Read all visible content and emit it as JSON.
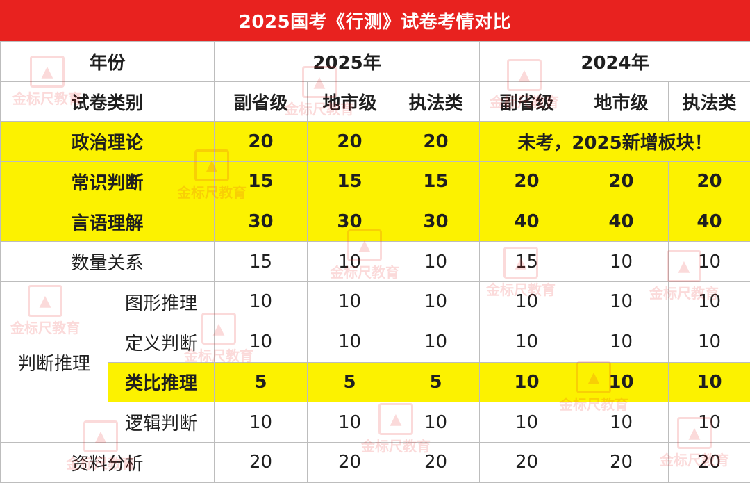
{
  "title": "2025国考《行测》试卷考情对比",
  "header": {
    "year_label": "年份",
    "year_2025": "2025年",
    "year_2024": "2024年",
    "category_label": "试卷类别",
    "levels_2025": [
      "副省级",
      "地市级",
      "执法类"
    ],
    "levels_2024": [
      "副省级",
      "地市级",
      "执法类"
    ]
  },
  "rows": {
    "politics": {
      "label": "政治理论",
      "v2025": [
        "20",
        "20",
        "20"
      ],
      "note_2024": "未考，2025新增板块！"
    },
    "common": {
      "label": "常识判断",
      "v2025": [
        "15",
        "15",
        "15"
      ],
      "v2024": [
        "20",
        "20",
        "20"
      ]
    },
    "verbal": {
      "label": "言语理解",
      "v2025": [
        "30",
        "30",
        "30"
      ],
      "v2024": [
        "40",
        "40",
        "40"
      ]
    },
    "quant": {
      "label": "数量关系",
      "v2025": [
        "15",
        "10",
        "10"
      ],
      "v2024": [
        "15",
        "10",
        "10"
      ]
    },
    "reasoning_group": "判断推理",
    "figure": {
      "label": "图形推理",
      "v2025": [
        "10",
        "10",
        "10"
      ],
      "v2024": [
        "10",
        "10",
        "10"
      ]
    },
    "definition": {
      "label": "定义判断",
      "v2025": [
        "10",
        "10",
        "10"
      ],
      "v2024": [
        "10",
        "10",
        "10"
      ]
    },
    "analogy": {
      "label": "类比推理",
      "v2025": [
        "5",
        "5",
        "5"
      ],
      "v2024": [
        "10",
        "10",
        "10"
      ]
    },
    "logic": {
      "label": "逻辑判断",
      "v2025": [
        "10",
        "10",
        "10"
      ],
      "v2024": [
        "10",
        "10",
        "10"
      ]
    },
    "data": {
      "label": "资料分析",
      "v2025": [
        "20",
        "20",
        "20"
      ],
      "v2024": [
        "20",
        "20",
        "20"
      ]
    }
  },
  "watermark_text": "金标尺教育",
  "colors": {
    "title_bg": "#e8221f",
    "highlight_bg": "#fcf200",
    "highlight_text": "#e8221f"
  }
}
